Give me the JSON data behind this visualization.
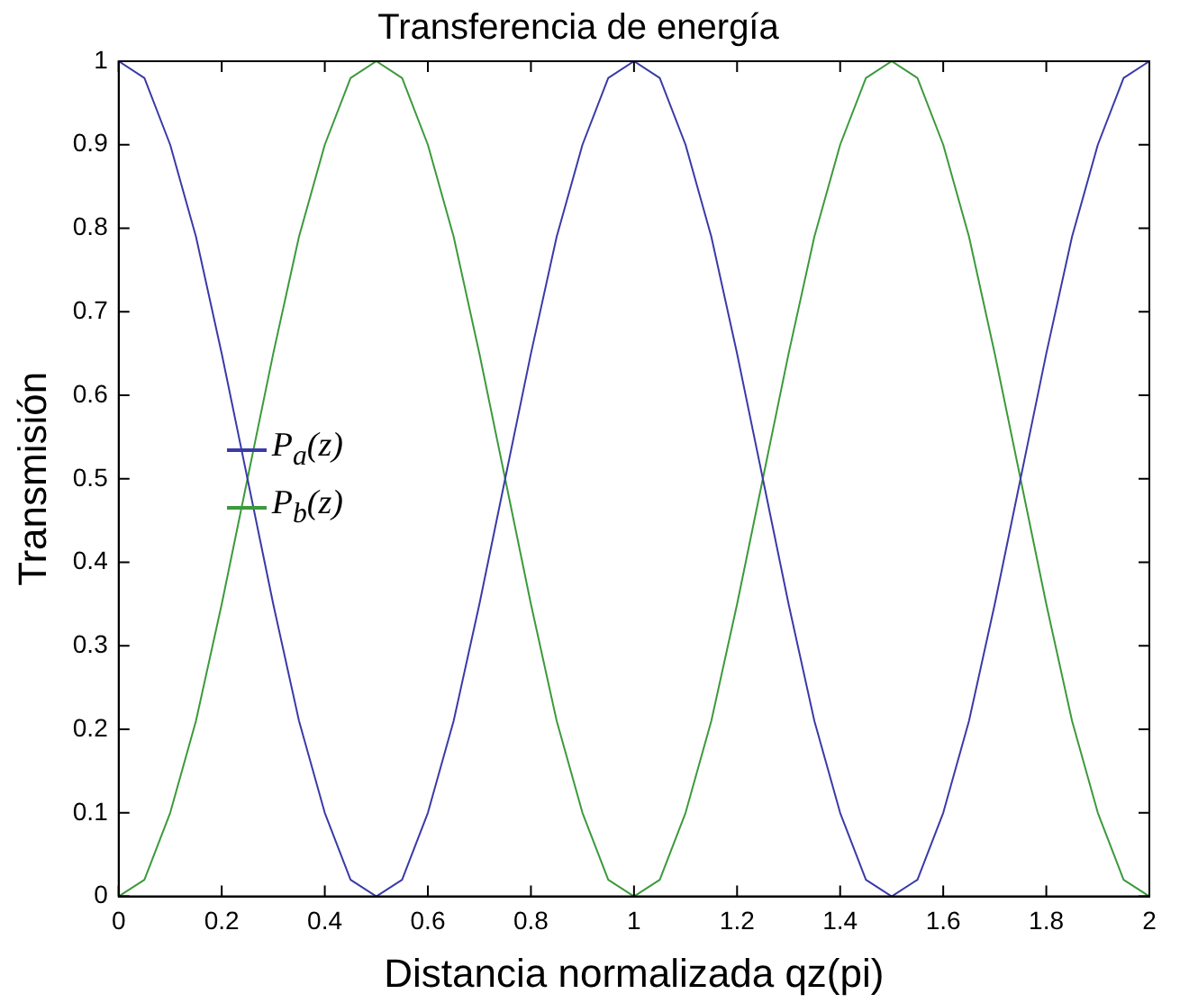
{
  "chart_data": {
    "type": "line",
    "title": "Transferencia de energía",
    "xlabel": "Distancia normalizada qz(pi)",
    "ylabel": "Transmisión",
    "x": [
      0,
      0.05,
      0.1,
      0.15,
      0.2,
      0.25,
      0.3,
      0.35,
      0.4,
      0.45,
      0.5,
      0.55,
      0.6,
      0.65,
      0.7,
      0.75,
      0.8,
      0.85,
      0.9,
      0.95,
      1,
      1.05,
      1.1,
      1.15,
      1.2,
      1.25,
      1.3,
      1.35,
      1.4,
      1.45,
      1.5,
      1.55,
      1.6,
      1.65,
      1.7,
      1.75,
      1.8,
      1.85,
      1.9,
      1.95,
      2
    ],
    "series": [
      {
        "name": "P$_{a}$(z)",
        "color": "#3a3aa8",
        "values": [
          1,
          0.98,
          0.9,
          0.79,
          0.65,
          0.5,
          0.35,
          0.21,
          0.1,
          0.02,
          0,
          0.02,
          0.1,
          0.21,
          0.35,
          0.5,
          0.65,
          0.79,
          0.9,
          0.98,
          1,
          0.98,
          0.9,
          0.79,
          0.65,
          0.5,
          0.35,
          0.21,
          0.1,
          0.02,
          0,
          0.02,
          0.1,
          0.21,
          0.35,
          0.5,
          0.65,
          0.79,
          0.9,
          0.98,
          1
        ]
      },
      {
        "name": "P$_{b}$(z)",
        "color": "#3c9a3c",
        "values": [
          0,
          0.02,
          0.1,
          0.21,
          0.35,
          0.5,
          0.65,
          0.79,
          0.9,
          0.98,
          1,
          0.98,
          0.9,
          0.79,
          0.65,
          0.5,
          0.35,
          0.21,
          0.1,
          0.02,
          0,
          0.02,
          0.1,
          0.21,
          0.35,
          0.5,
          0.65,
          0.79,
          0.9,
          0.98,
          1,
          0.98,
          0.9,
          0.79,
          0.65,
          0.5,
          0.35,
          0.21,
          0.1,
          0.02,
          0
        ]
      }
    ],
    "xlim": [
      0,
      2
    ],
    "xticks": [
      0,
      0.2,
      0.4,
      0.6,
      0.8,
      1,
      1.2,
      1.4,
      1.6,
      1.8,
      2
    ],
    "ylim": [
      0,
      1
    ],
    "yticks": [
      0,
      0.1,
      0.2,
      0.3,
      0.4,
      0.5,
      0.6,
      0.7,
      0.8,
      0.9,
      1
    ],
    "grid": false,
    "legend": "left",
    "marker": "none",
    "line_style": "solid"
  }
}
